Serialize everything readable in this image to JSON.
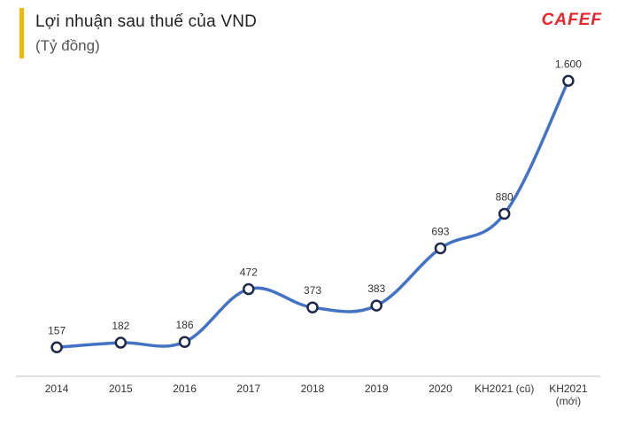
{
  "header": {
    "title": "Lợi nhuận sau thuế của VND",
    "subtitle": "(Tỷ đồng)",
    "logo_text": "CAFEF"
  },
  "colors": {
    "accent": "#f5b800",
    "line": "#4472c4",
    "marker_stroke": "#1f2a4a",
    "logo": "#e8242c",
    "axis": "#bfbfbf"
  },
  "chart_data": {
    "type": "line",
    "title": "Lợi nhuận sau thuế của VND",
    "ylabel": "(Tỷ đồng)",
    "categories": [
      "2014",
      "2015",
      "2016",
      "2017",
      "2018",
      "2019",
      "2020",
      "KH2021 (cũ)",
      "KH2021\n(mới)"
    ],
    "values": [
      157,
      182,
      186,
      472,
      373,
      383,
      693,
      880,
      1600
    ],
    "value_labels": [
      "157",
      "182",
      "186",
      "472",
      "373",
      "383",
      "693",
      "880",
      "1.600"
    ],
    "ylim": [
      0,
      1750
    ],
    "grid": false,
    "legend": "none"
  }
}
